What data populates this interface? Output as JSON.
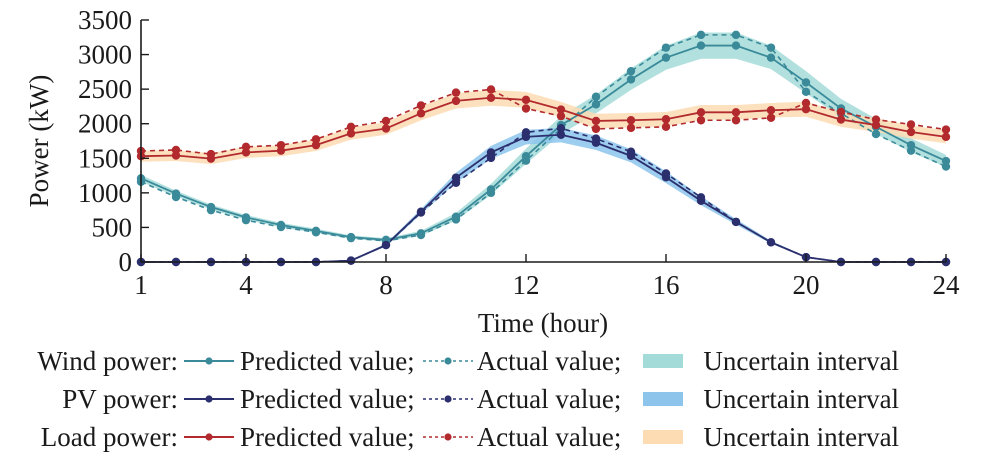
{
  "chart_data": {
    "type": "line",
    "title": "",
    "xlabel": "Time (hour)",
    "ylabel": "Power (kW)",
    "xlim": [
      1,
      24
    ],
    "ylim": [
      0,
      3500
    ],
    "xticks": [
      1,
      4,
      8,
      12,
      16,
      20,
      24
    ],
    "yticks": [
      0,
      500,
      1000,
      1500,
      2000,
      2500,
      3000,
      3500
    ],
    "grid": false,
    "legend_position": "bottom",
    "x": [
      1,
      2,
      3,
      4,
      5,
      6,
      7,
      8,
      9,
      10,
      11,
      12,
      13,
      14,
      15,
      16,
      17,
      18,
      19,
      20,
      21,
      22,
      23,
      24
    ],
    "series": [
      {
        "group": "Wind power",
        "name": "Predicted value",
        "style": "solid",
        "color": "#3a8a9a",
        "values": [
          1210,
          990,
          795,
          645,
          535,
          450,
          360,
          320,
          415,
          655,
          1050,
          1530,
          1980,
          2280,
          2640,
          2955,
          3130,
          3130,
          2955,
          2597,
          2220,
          1955,
          1690,
          1460
        ]
      },
      {
        "group": "Wind power",
        "name": "Actual value",
        "style": "dashed",
        "color": "#3a8a9a",
        "values": [
          1160,
          940,
          750,
          605,
          505,
          430,
          345,
          305,
          390,
          615,
          1000,
          1465,
          1930,
          2390,
          2760,
          3100,
          3285,
          3285,
          3100,
          2461,
          2150,
          1850,
          1610,
          1380
        ]
      },
      {
        "group": "Wind power",
        "name": "Uncertain interval",
        "style": "band",
        "color": "#a3dbd8",
        "lower": [
          1160,
          950,
          760,
          610,
          500,
          420,
          335,
          295,
          380,
          600,
          970,
          1420,
          1850,
          2150,
          2490,
          2780,
          2940,
          2940,
          2790,
          2440,
          2090,
          1850,
          1590,
          1370
        ],
        "upper": [
          1260,
          1030,
          830,
          680,
          565,
          480,
          385,
          345,
          450,
          710,
          1130,
          1640,
          2110,
          2420,
          2800,
          3130,
          3320,
          3320,
          3130,
          2760,
          2360,
          2070,
          1790,
          1550
        ]
      },
      {
        "group": "PV power",
        "name": "Predicted value",
        "style": "solid",
        "color": "#2b2f6e",
        "values": [
          0,
          0,
          0,
          0,
          0,
          0,
          20,
          245,
          727,
          1220,
          1585,
          1810,
          1840,
          1725,
          1535,
          1225,
          885,
          580,
          285,
          70,
          0,
          0,
          0,
          0
        ]
      },
      {
        "group": "PV power",
        "name": "Actual value",
        "style": "dashed",
        "color": "#2b2f6e",
        "values": [
          0,
          0,
          0,
          0,
          0,
          0,
          20,
          245,
          715,
          1145,
          1505,
          1875,
          1935,
          1785,
          1595,
          1280,
          935,
          580,
          285,
          70,
          0,
          0,
          0,
          0
        ]
      },
      {
        "group": "PV power",
        "name": "Uncertain interval",
        "style": "band",
        "color": "#8cc4ec",
        "lower": [
          0,
          0,
          0,
          0,
          0,
          0,
          10,
          225,
          690,
          1150,
          1490,
          1700,
          1730,
          1620,
          1440,
          1140,
          820,
          540,
          265,
          60,
          0,
          0,
          0,
          0
        ],
        "upper": [
          0,
          0,
          0,
          0,
          0,
          0,
          30,
          265,
          765,
          1290,
          1680,
          1910,
          1940,
          1830,
          1630,
          1310,
          950,
          620,
          305,
          80,
          0,
          0,
          0,
          0
        ]
      },
      {
        "group": "Load power",
        "name": "Predicted value",
        "style": "solid",
        "color": "#b22a2e",
        "values": [
          1530,
          1540,
          1495,
          1585,
          1610,
          1690,
          1860,
          1930,
          2150,
          2330,
          2375,
          2345,
          2205,
          2040,
          2050,
          2065,
          2165,
          2165,
          2195,
          2210,
          2060,
          1980,
          1880,
          1810
        ]
      },
      {
        "group": "Load power",
        "name": "Actual value",
        "style": "dashed",
        "color": "#b22a2e",
        "values": [
          1605,
          1620,
          1560,
          1665,
          1690,
          1775,
          1955,
          2040,
          2265,
          2450,
          2495,
          2220,
          2110,
          1925,
          1940,
          1955,
          2050,
          2050,
          2085,
          2300,
          2170,
          2060,
          1990,
          1915
        ]
      },
      {
        "group": "Load power",
        "name": "Uncertain interval",
        "style": "band",
        "color": "#fddcb3",
        "lower": [
          1450,
          1460,
          1415,
          1505,
          1530,
          1605,
          1770,
          1840,
          2050,
          2220,
          2260,
          2230,
          2095,
          1935,
          1945,
          1960,
          2060,
          2060,
          2090,
          2100,
          1955,
          1880,
          1785,
          1715
        ],
        "upper": [
          1610,
          1620,
          1575,
          1665,
          1690,
          1775,
          1950,
          2020,
          2250,
          2440,
          2490,
          2460,
          2315,
          2145,
          2155,
          2170,
          2270,
          2270,
          2300,
          2320,
          2165,
          2080,
          1975,
          1905
        ]
      }
    ]
  },
  "legend": {
    "rows": [
      {
        "group": "Wind power:",
        "predicted": "Predicted value;",
        "actual": "Actual value;",
        "interval": "Uncertain interval",
        "line_color": "#3a8a9a",
        "band_color": "#a3dbd8"
      },
      {
        "group": "PV power:",
        "predicted": "Predicted value;",
        "actual": "Actual value;",
        "interval": "Uncertain interval",
        "line_color": "#2b2f6e",
        "band_color": "#8cc4ec"
      },
      {
        "group": "Load power:",
        "predicted": "Predicted value;",
        "actual": "Actual value;",
        "interval": "Uncertain interval",
        "line_color": "#b22a2e",
        "band_color": "#fddcb3"
      }
    ]
  }
}
